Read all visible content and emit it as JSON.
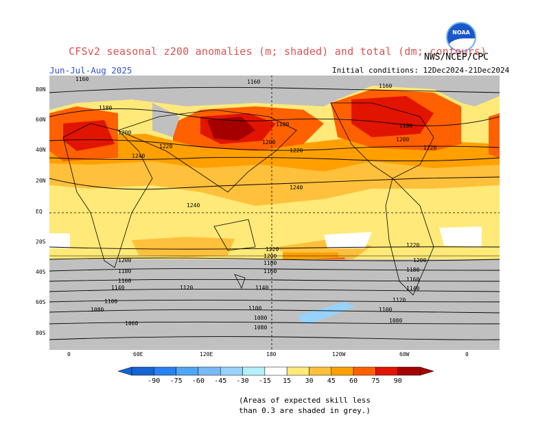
{
  "header": {
    "title": "CFSv2 seasonal z200 anomalies (m; shaded) and total (dm; contours)",
    "agency": "NWS/NCEP/CPC",
    "period": "Jun-Jul-Aug 2025",
    "initial_conditions": "Initial conditions: 12Dec2024-21Dec2024",
    "logo_text": "NOAA"
  },
  "map": {
    "lat_labels": [
      "80N",
      "60N",
      "40N",
      "20N",
      "EQ",
      "20S",
      "40S",
      "60S",
      "80S"
    ],
    "lon_labels": [
      "0",
      "60E",
      "120E",
      "180",
      "120W",
      "60W",
      "0"
    ],
    "skill_mask_color": "#c0c0c0",
    "contour_labels": [
      "1160",
      "1160",
      "1160",
      "1180",
      "1180",
      "1180",
      "1200",
      "1200",
      "1200",
      "1220",
      "1220",
      "1220",
      "1240",
      "1240",
      "1240",
      "1220",
      "1220",
      "1200",
      "1200",
      "1200",
      "1180",
      "1180",
      "1180",
      "1160",
      "1160",
      "1160",
      "1140",
      "1140",
      "1140",
      "1120",
      "1120",
      "1100",
      "1100",
      "1100",
      "1080",
      "1080",
      "1080",
      "1060",
      "1080"
    ]
  },
  "colorbar": {
    "levels": [
      "-90",
      "-75",
      "-60",
      "-45",
      "-30",
      "-15",
      "15",
      "30",
      "45",
      "60",
      "75",
      "90"
    ],
    "colors": [
      "#1464d2",
      "#2882f0",
      "#50a5f5",
      "#78b9fa",
      "#96d2fa",
      "#b4f0fa",
      "#ffffff",
      "#ffe978",
      "#ffc03c",
      "#ffa000",
      "#ff6000",
      "#e11400",
      "#a50000"
    ]
  },
  "footnote": {
    "line1": "(Areas of expected skill less",
    "line2": "than 0.3 are shaded in grey.)"
  }
}
